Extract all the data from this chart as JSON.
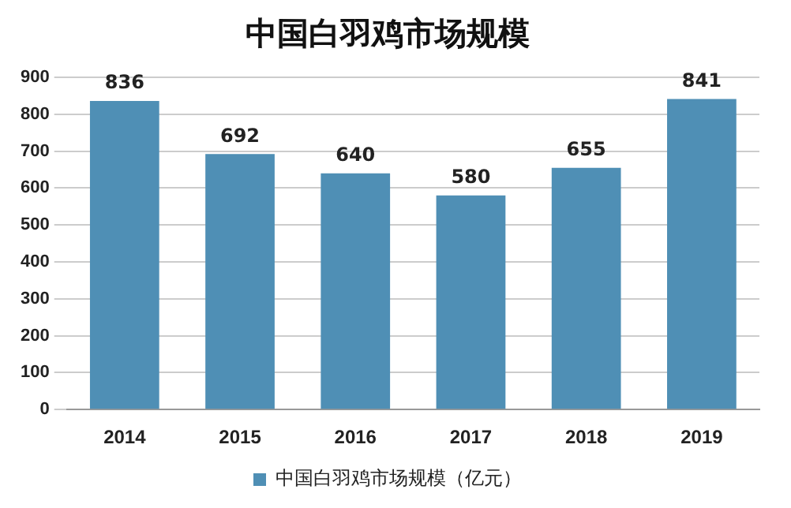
{
  "chart_data": {
    "type": "bar",
    "title": "中国白羽鸡市场规模",
    "categories": [
      "2014",
      "2015",
      "2016",
      "2017",
      "2018",
      "2019"
    ],
    "series": [
      {
        "name": "中国白羽鸡市场规模（亿元）",
        "color": "#4f8fb5",
        "values": [
          836,
          692,
          640,
          580,
          655,
          841
        ]
      }
    ],
    "ylim": [
      0,
      900
    ],
    "yticks": [
      0,
      100,
      200,
      300,
      400,
      500,
      600,
      700,
      800,
      900
    ],
    "grid": "y",
    "legend": "bottom",
    "data_labels": true
  }
}
